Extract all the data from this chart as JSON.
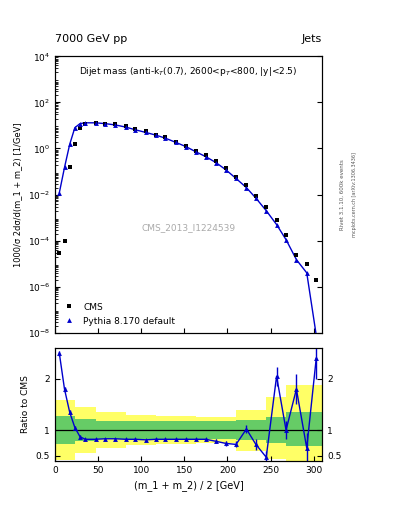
{
  "title_left": "7000 GeV pp",
  "title_right": "Jets",
  "annotation": "Dijet mass (anti-k$_T$(0.7), 2600<p$_T$<800, |y|<2.5)",
  "cms_label": "CMS_2013_I1224539",
  "rivet_label": "Rivet 3.1.10, 600k events",
  "mcplots_label": "mcplots.cern.ch [arXiv:1306.3436]",
  "xlabel": "(m_1 + m_2) / 2 [GeV]",
  "ylabel_top": "1000/σ 2dσ/d(m_1 + m_2) [1/GeV]",
  "ylabel_bottom": "Ratio to CMS",
  "xlim": [
    0,
    310
  ],
  "ylim_top_lo": 1e-08,
  "ylim_top_hi": 10000.0,
  "ylim_bottom_lo": 0.4,
  "ylim_bottom_hi": 2.6,
  "cms_x": [
    5,
    11,
    17,
    23,
    29,
    35,
    47,
    58,
    70,
    82,
    93,
    105,
    117,
    128,
    140,
    152,
    163,
    175,
    187,
    198,
    210,
    222,
    233,
    245,
    257,
    268,
    280,
    292,
    303
  ],
  "cms_y": [
    3e-05,
    0.0001,
    0.15,
    1.5,
    8,
    11,
    13,
    12,
    11,
    9,
    7,
    5.5,
    4,
    3,
    2,
    1.3,
    0.8,
    0.5,
    0.28,
    0.14,
    0.06,
    0.025,
    0.009,
    0.003,
    0.0008,
    0.00018,
    2.5e-05,
    1e-05,
    2e-06
  ],
  "pythia_x": [
    5,
    11,
    17,
    23,
    29,
    35,
    47,
    58,
    70,
    82,
    93,
    105,
    117,
    128,
    140,
    152,
    163,
    175,
    187,
    198,
    210,
    222,
    233,
    245,
    257,
    268,
    280,
    292,
    303
  ],
  "pythia_y": [
    0.012,
    0.15,
    1.5,
    8,
    12,
    13,
    13,
    12,
    10.5,
    8.5,
    6.5,
    5,
    3.8,
    2.8,
    1.85,
    1.2,
    0.73,
    0.44,
    0.24,
    0.12,
    0.05,
    0.02,
    0.007,
    0.002,
    0.0005,
    0.00011,
    1.5e-05,
    4e-06,
    8e-09
  ],
  "ratio_x": [
    5,
    11,
    17,
    23,
    29,
    35,
    47,
    58,
    70,
    82,
    93,
    105,
    117,
    128,
    140,
    152,
    163,
    175,
    187,
    198,
    210,
    222,
    233,
    245,
    257,
    268,
    280,
    292,
    303
  ],
  "ratio_y": [
    2.5,
    1.8,
    1.35,
    1.05,
    0.87,
    0.82,
    0.82,
    0.83,
    0.83,
    0.82,
    0.82,
    0.81,
    0.82,
    0.82,
    0.82,
    0.82,
    0.82,
    0.82,
    0.78,
    0.74,
    0.72,
    1.02,
    0.72,
    0.47,
    2.05,
    1.0,
    1.8,
    0.65,
    2.4
  ],
  "ratio_yerr": [
    0.05,
    0.05,
    0.04,
    0.03,
    0.03,
    0.02,
    0.02,
    0.02,
    0.02,
    0.02,
    0.02,
    0.02,
    0.02,
    0.02,
    0.02,
    0.02,
    0.02,
    0.03,
    0.04,
    0.05,
    0.06,
    0.08,
    0.1,
    0.12,
    0.18,
    0.18,
    0.3,
    0.3,
    0.4
  ],
  "green_band_x": [
    0,
    23,
    47,
    82,
    117,
    163,
    210,
    245,
    268,
    310
  ],
  "green_band_low": [
    0.72,
    0.78,
    0.82,
    0.82,
    0.82,
    0.82,
    0.8,
    0.75,
    0.68,
    0.6
  ],
  "green_band_high": [
    1.28,
    1.22,
    1.18,
    1.18,
    1.18,
    1.18,
    1.2,
    1.25,
    1.35,
    1.5
  ],
  "yellow_band_x": [
    0,
    23,
    47,
    82,
    117,
    163,
    210,
    245,
    268,
    310
  ],
  "yellow_band_low": [
    0.42,
    0.55,
    0.65,
    0.7,
    0.72,
    0.74,
    0.6,
    0.43,
    0.36,
    0.32
  ],
  "yellow_band_high": [
    1.58,
    1.45,
    1.35,
    1.3,
    1.28,
    1.26,
    1.4,
    1.65,
    1.88,
    2.0
  ],
  "line_color": "#0000cc",
  "cms_color": "black",
  "green_color": "#66cc66",
  "yellow_color": "#ffff66",
  "bg_color": "#f0f0f0"
}
